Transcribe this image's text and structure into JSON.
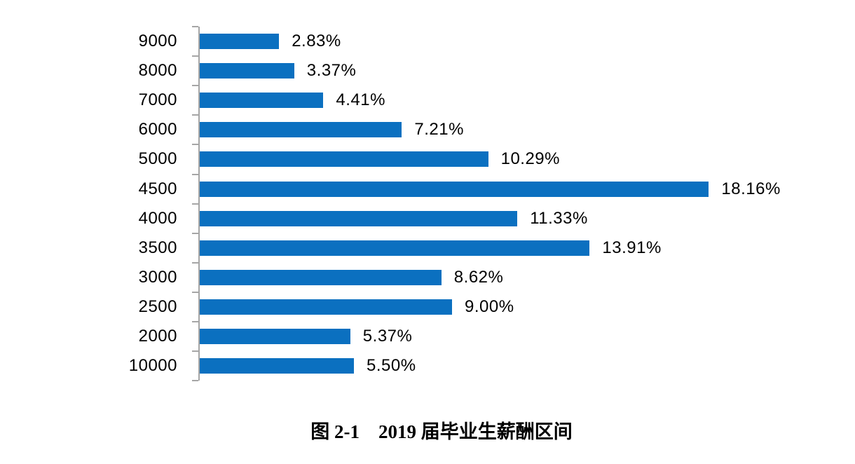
{
  "page": {
    "background": "#FFFFFF"
  },
  "chart_data": {
    "type": "bar",
    "orientation": "horizontal",
    "title": "图 2-1　2019 届毕业生薪酬区间",
    "categories": [
      "9000",
      "8000",
      "7000",
      "6000",
      "5000",
      "4500",
      "4000",
      "3500",
      "3000",
      "2500",
      "2000",
      "10000"
    ],
    "values": [
      2.83,
      3.37,
      4.41,
      7.21,
      10.29,
      18.16,
      11.33,
      13.91,
      8.62,
      9.0,
      5.37,
      5.5
    ],
    "value_labels": [
      "2.83%",
      "3.37%",
      "4.41%",
      "7.21%",
      "10.29%",
      "18.16%",
      "11.33%",
      "13.91%",
      "8.62%",
      "9.00%",
      "5.37%",
      "5.50%"
    ],
    "xlabel": "",
    "ylabel": "",
    "xlim": [
      0,
      20
    ],
    "grid": false,
    "legend": false,
    "data_labels": true,
    "bar_color": "#0B70C0",
    "axis_color": "#A6A6A6",
    "text_color": "#000000"
  }
}
